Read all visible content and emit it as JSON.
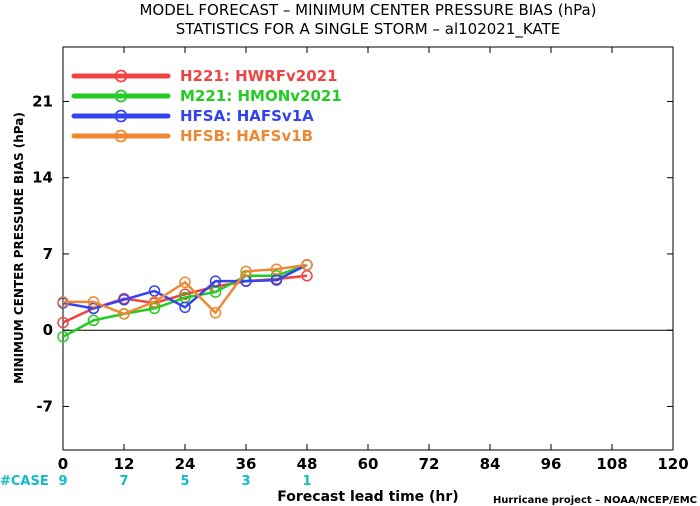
{
  "chart_data": {
    "type": "line",
    "title": "MODEL FORECAST – MINIMUM CENTER PRESSURE BIAS (hPa)",
    "subtitle": "STATISTICS FOR A SINGLE STORM – al102021_KATE",
    "xlabel": "Forecast lead time (hr)",
    "ylabel": "MINIMUM CENTER PRESSURE BIAS (hPa)",
    "credit": "Hurricane project – NOAA/NCEP/EMC",
    "xlim": [
      0,
      120
    ],
    "ylim": [
      -11,
      26
    ],
    "x_ticks": [
      0,
      12,
      24,
      36,
      48,
      60,
      72,
      84,
      96,
      108,
      120
    ],
    "y_ticks": [
      -7,
      0,
      7,
      14,
      21
    ],
    "grid": false,
    "zero_line": true,
    "legend_placement": "top-left",
    "case_label": "#CASE",
    "cases": [
      {
        "x": 0,
        "n": "9"
      },
      {
        "x": 12,
        "n": "7"
      },
      {
        "x": 24,
        "n": "5"
      },
      {
        "x": 36,
        "n": "3"
      },
      {
        "x": 48,
        "n": "1"
      }
    ],
    "series": [
      {
        "id": "H221",
        "name": "H221: HWRFv2021",
        "color": "#ee4444",
        "x": [
          0,
          6,
          12,
          18,
          24,
          30,
          36,
          42,
          48
        ],
        "values": [
          0.7,
          2.0,
          2.9,
          2.5,
          3.3,
          4.0,
          4.5,
          4.7,
          5.0
        ]
      },
      {
        "id": "M221",
        "name": "M221: HMONv2021",
        "color": "#22cc22",
        "x": [
          0,
          6,
          12,
          18,
          24,
          30,
          36,
          42,
          48
        ],
        "values": [
          -0.6,
          0.9,
          1.5,
          2.0,
          3.0,
          3.5,
          5.0,
          5.0,
          6.0
        ]
      },
      {
        "id": "HFSA",
        "name": "HFSA: HAFSv1A",
        "color": "#3344ee",
        "x": [
          0,
          6,
          12,
          18,
          24,
          30,
          36,
          42,
          48
        ],
        "values": [
          2.5,
          2.0,
          2.8,
          3.6,
          2.1,
          4.5,
          4.5,
          4.6,
          6.0
        ]
      },
      {
        "id": "HFSB",
        "name": "HFSB: HAFSv1B",
        "color": "#ee8833",
        "x": [
          0,
          6,
          12,
          18,
          24,
          30,
          36,
          42,
          48
        ],
        "values": [
          2.6,
          2.6,
          1.5,
          2.6,
          4.4,
          1.6,
          5.4,
          5.6,
          6.0
        ]
      }
    ]
  },
  "colors": {
    "case_text": "#11bbcc",
    "axis": "#000000"
  }
}
